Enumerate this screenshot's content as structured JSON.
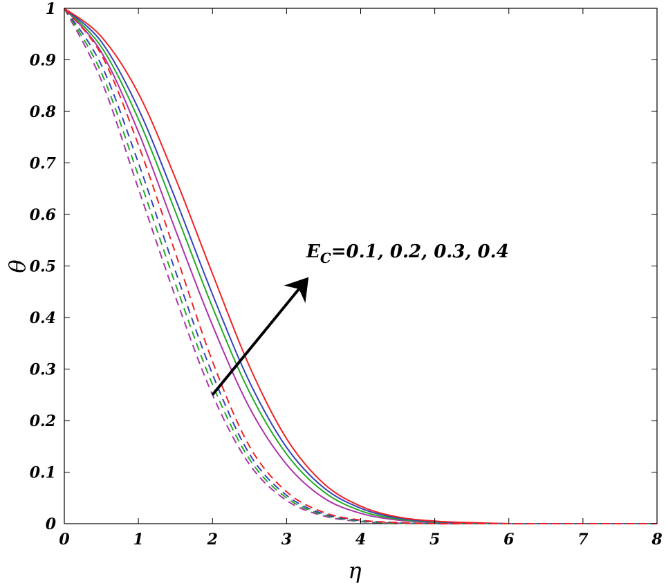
{
  "chart_data": {
    "type": "line",
    "title": "",
    "xlabel": "η",
    "ylabel": "θ",
    "xlim": [
      0,
      8
    ],
    "ylim": [
      0,
      1
    ],
    "x_ticks": [
      "0",
      "1",
      "2",
      "3",
      "4",
      "5",
      "6",
      "7",
      "8"
    ],
    "y_ticks": [
      "0",
      "0.1",
      "0.2",
      "0.3",
      "0.4",
      "0.5",
      "0.6",
      "0.7",
      "0.8",
      "0.9",
      "1"
    ],
    "grid": false,
    "legend": "none",
    "annotation": {
      "text_main": "E",
      "text_sub": "C",
      "text_rest": "=0.1, 0.2, 0.3, 0.4",
      "arrow_from": [
        2.0,
        0.25
      ],
      "arrow_to": [
        3.25,
        0.47
      ]
    },
    "x": [
      0,
      0.5,
      1,
      1.5,
      2,
      2.5,
      3,
      3.5,
      4,
      4.5,
      5,
      5.5,
      6,
      6.5,
      7,
      8
    ],
    "series": [
      {
        "style": "solid",
        "color": "#aa33aa",
        "values": [
          1,
          0.915,
          0.76,
          0.57,
          0.385,
          0.225,
          0.115,
          0.05,
          0.02,
          0.007,
          0.002,
          0.001,
          0,
          0,
          0,
          0
        ]
      },
      {
        "style": "solid",
        "color": "#22aa22",
        "values": [
          1,
          0.925,
          0.785,
          0.605,
          0.42,
          0.255,
          0.135,
          0.062,
          0.025,
          0.009,
          0.003,
          0.001,
          0,
          0,
          0,
          0
        ]
      },
      {
        "style": "solid",
        "color": "#3344bb",
        "values": [
          1,
          0.935,
          0.805,
          0.63,
          0.445,
          0.275,
          0.148,
          0.07,
          0.03,
          0.011,
          0.004,
          0.001,
          0,
          0,
          0,
          0
        ]
      },
      {
        "style": "solid",
        "color": "#ee2222",
        "values": [
          1,
          0.945,
          0.835,
          0.67,
          0.485,
          0.305,
          0.165,
          0.078,
          0.034,
          0.013,
          0.005,
          0.002,
          0,
          0,
          0,
          0
        ]
      },
      {
        "style": "dashed",
        "color": "#aa33aa",
        "values": [
          1,
          0.86,
          0.65,
          0.44,
          0.25,
          0.115,
          0.045,
          0.015,
          0.004,
          0.001,
          0,
          0,
          0,
          0,
          0,
          0
        ]
      },
      {
        "style": "dashed",
        "color": "#22aa22",
        "values": [
          1,
          0.875,
          0.675,
          0.465,
          0.27,
          0.125,
          0.05,
          0.017,
          0.005,
          0.001,
          0,
          0,
          0,
          0,
          0,
          0
        ]
      },
      {
        "style": "dashed",
        "color": "#3344bb",
        "values": [
          1,
          0.89,
          0.7,
          0.49,
          0.29,
          0.135,
          0.055,
          0.019,
          0.006,
          0.002,
          0,
          0,
          0,
          0,
          0,
          0
        ]
      },
      {
        "style": "dashed",
        "color": "#ee2222",
        "values": [
          1,
          0.91,
          0.735,
          0.525,
          0.315,
          0.15,
          0.062,
          0.022,
          0.007,
          0.002,
          0,
          0,
          0,
          0,
          0,
          0
        ]
      }
    ]
  }
}
